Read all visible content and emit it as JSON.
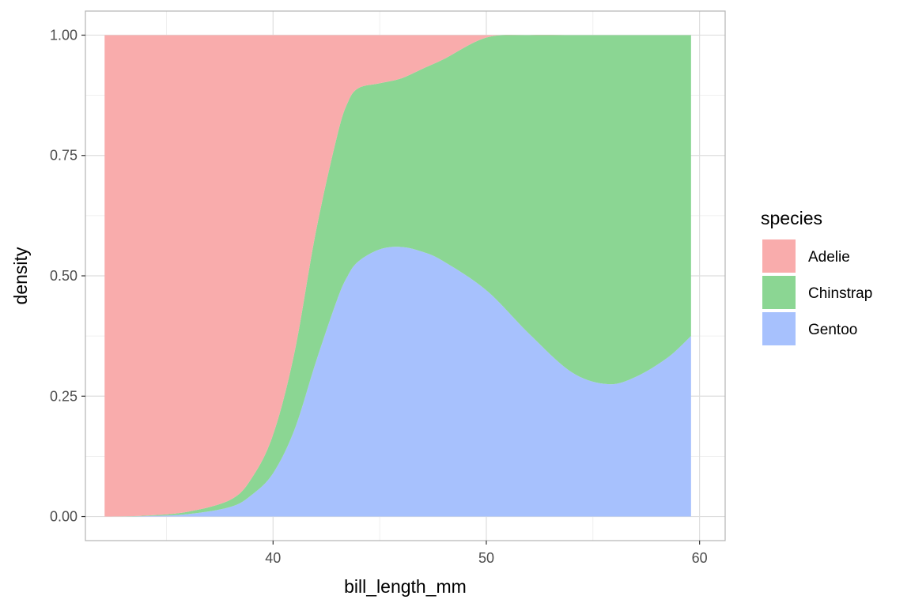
{
  "chart_data": {
    "type": "area",
    "stacking": "fill",
    "xlabel": "bill_length_mm",
    "ylabel": "density",
    "xlim": [
      31.2,
      61.2
    ],
    "ylim": [
      -0.05,
      1.05
    ],
    "x_ticks": [
      40,
      50,
      60
    ],
    "x_tick_labels": [
      "40",
      "50",
      "60"
    ],
    "y_ticks": [
      0,
      0.25,
      0.5,
      0.75,
      1
    ],
    "y_tick_labels": [
      "0.00",
      "0.25",
      "0.50",
      "0.75",
      "1.00"
    ],
    "grid": true,
    "legend": {
      "title": "species",
      "position": "right"
    },
    "x": [
      32.1,
      34,
      36,
      38,
      39,
      40,
      41,
      42,
      43,
      43.5,
      44,
      45,
      46,
      47,
      48,
      50,
      52,
      54,
      55.7,
      57,
      58.5,
      59.6
    ],
    "series": [
      {
        "name": "Gentoo",
        "color": "#a7c1fd",
        "values": [
          0.0,
          0.001,
          0.005,
          0.02,
          0.045,
          0.09,
          0.18,
          0.32,
          0.45,
          0.5,
          0.53,
          0.555,
          0.56,
          0.55,
          0.53,
          0.47,
          0.38,
          0.3,
          0.275,
          0.29,
          0.33,
          0.375
        ]
      },
      {
        "name": "Chinstrap",
        "color": "#8bd693",
        "values": [
          0.0,
          0.001,
          0.005,
          0.015,
          0.035,
          0.08,
          0.16,
          0.27,
          0.34,
          0.36,
          0.36,
          0.345,
          0.35,
          0.38,
          0.42,
          0.525,
          0.62,
          0.7,
          0.725,
          0.71,
          0.67,
          0.625
        ]
      },
      {
        "name": "Adelie",
        "color": "#f9acac",
        "values": [
          1.0,
          0.998,
          0.99,
          0.965,
          0.92,
          0.83,
          0.66,
          0.41,
          0.21,
          0.14,
          0.11,
          0.1,
          0.09,
          0.07,
          0.05,
          0.005,
          0.0,
          0.0,
          0.0,
          0.0,
          0.0,
          0.0
        ]
      }
    ],
    "legend_entries": [
      {
        "name": "Adelie",
        "color": "#f9acac"
      },
      {
        "name": "Chinstrap",
        "color": "#8bd693"
      },
      {
        "name": "Gentoo",
        "color": "#a7c1fd"
      }
    ]
  }
}
